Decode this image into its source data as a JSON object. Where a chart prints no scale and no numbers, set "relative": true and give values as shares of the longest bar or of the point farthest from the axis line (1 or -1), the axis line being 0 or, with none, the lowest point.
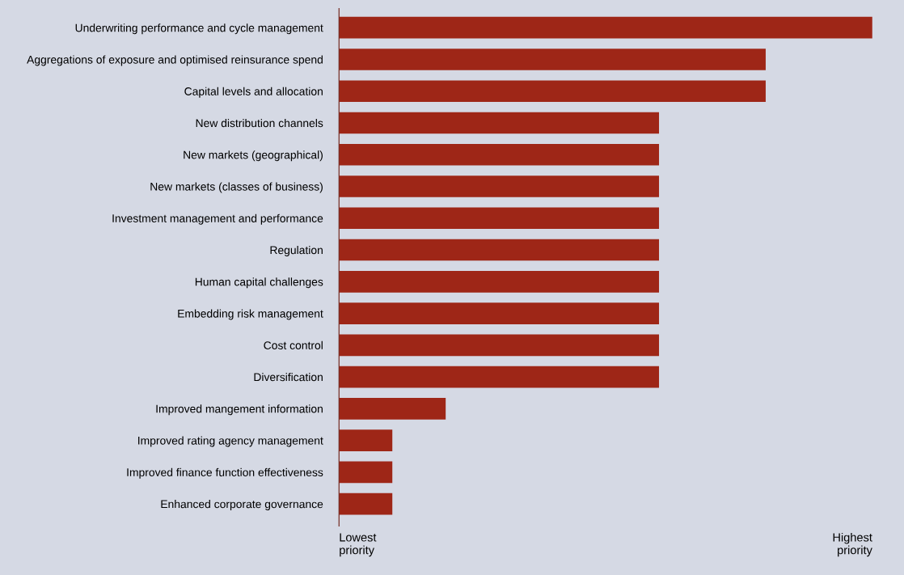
{
  "chart_data": {
    "type": "bar",
    "orientation": "horizontal",
    "relative": true,
    "categories": [
      "Underwriting performance and cycle management",
      "Aggregations of exposure and optimised reinsurance spend",
      "Capital levels and allocation",
      "New distribution channels",
      "New markets (geographical)",
      "New markets (classes of business)",
      "Investment management and performance",
      "Regulation",
      "Human capital challenges",
      "Embedding risk management",
      "Cost control",
      "Diversification",
      "Improved mangement information",
      "Improved rating agency management",
      "Improved finance function effectiveness",
      "Enhanced corporate governance"
    ],
    "values": [
      1,
      0.8,
      0.8,
      0.6,
      0.6,
      0.6,
      0.6,
      0.6,
      0.6,
      0.6,
      0.6,
      0.6,
      0.2,
      0.1,
      0.1,
      0.1
    ],
    "color": "#9e2617",
    "annotations": [
      "Lowest\npriority",
      "Highest\npriority"
    ],
    "grid": false,
    "legend": false
  }
}
